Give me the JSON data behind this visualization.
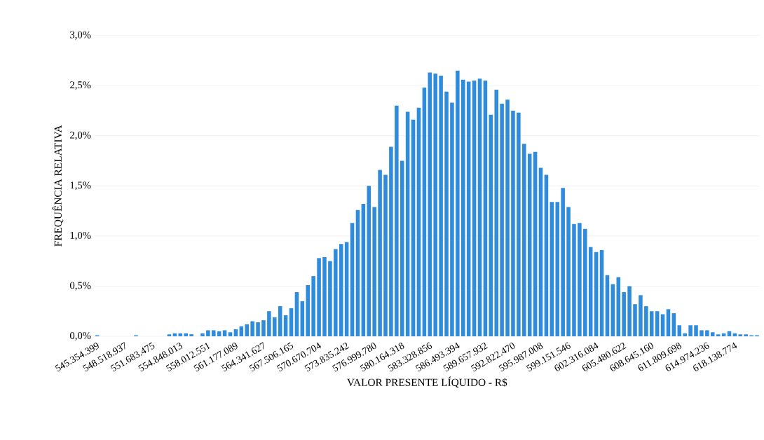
{
  "chart_data": {
    "type": "bar",
    "xlabel": "VALOR PRESENTE LÍQUIDO - R$",
    "ylabel": "FREQUÊNCIA RELATIVA",
    "categories": [
      "545.354.399",
      null,
      null,
      null,
      null,
      "548.518.937",
      null,
      null,
      null,
      null,
      "551.683.475",
      null,
      null,
      null,
      null,
      "554.848.013",
      null,
      null,
      null,
      null,
      "558.012.551",
      null,
      null,
      null,
      null,
      "561.177.089",
      null,
      null,
      null,
      null,
      "564.341.627",
      null,
      null,
      null,
      null,
      "567.506.165",
      null,
      null,
      null,
      null,
      "570.670.704",
      null,
      null,
      null,
      null,
      "573.835.242",
      null,
      null,
      null,
      null,
      "576.999.780",
      null,
      null,
      null,
      null,
      "580.164.318",
      null,
      null,
      null,
      null,
      "583.328.856",
      null,
      null,
      null,
      null,
      "586.493.394",
      null,
      null,
      null,
      null,
      "589.657.932",
      null,
      null,
      null,
      null,
      "592.822.470",
      null,
      null,
      null,
      null,
      "595.987.008",
      null,
      null,
      null,
      null,
      "599.151.546",
      null,
      null,
      null,
      null,
      "602.316.084",
      null,
      null,
      null,
      null,
      "605.480.622",
      null,
      null,
      null,
      null,
      "608.645.160",
      null,
      null,
      null,
      null,
      "611.809.698",
      null,
      null,
      null,
      null,
      "614.974.236",
      null,
      null,
      null,
      null,
      "618.138.774",
      null,
      null,
      null,
      null
    ],
    "values": [
      0.01,
      0,
      0,
      0,
      0,
      0,
      0,
      0.01,
      0,
      0,
      0,
      0,
      0,
      0.02,
      0.03,
      0.03,
      0.03,
      0.02,
      0,
      0.03,
      0.06,
      0.06,
      0.05,
      0.06,
      0.04,
      0.07,
      0.1,
      0.12,
      0.15,
      0.14,
      0.16,
      0.25,
      0.19,
      0.3,
      0.21,
      0.28,
      0.44,
      0.35,
      0.51,
      0.6,
      0.78,
      0.79,
      0.75,
      0.87,
      0.92,
      0.94,
      1.13,
      1.26,
      1.32,
      1.5,
      1.29,
      1.66,
      1.61,
      1.89,
      2.3,
      1.75,
      2.24,
      2.16,
      2.28,
      2.48,
      2.63,
      2.62,
      2.6,
      2.44,
      2.33,
      2.65,
      2.56,
      2.54,
      2.55,
      2.57,
      2.55,
      2.21,
      2.46,
      2.32,
      2.36,
      2.25,
      2.23,
      1.92,
      1.82,
      1.84,
      1.68,
      1.61,
      1.34,
      1.34,
      1.48,
      1.29,
      1.12,
      1.13,
      1.07,
      0.89,
      0.84,
      0.86,
      0.61,
      0.52,
      0.59,
      0.44,
      0.5,
      0.32,
      0.41,
      0.3,
      0.25,
      0.25,
      0.22,
      0.27,
      0.23,
      0.11,
      0.03,
      0.11,
      0.11,
      0.06,
      0.06,
      0.04,
      0.02,
      0.03,
      0.05,
      0.03,
      0.02,
      0.02,
      0.01,
      0.01
    ],
    "color": "#2f8bdc",
    "ylim": [
      0,
      3.0
    ],
    "yticks": [
      {
        "value": 0,
        "label": "0,0%"
      },
      {
        "value": 0.5,
        "label": "0,5%"
      },
      {
        "value": 1.0,
        "label": "1,0%"
      },
      {
        "value": 1.5,
        "label": "1,5%"
      },
      {
        "value": 2.0,
        "label": "2,0%"
      },
      {
        "value": 2.5,
        "label": "2,5%"
      },
      {
        "value": 3.0,
        "label": "3,0%"
      }
    ],
    "grid": "y"
  }
}
